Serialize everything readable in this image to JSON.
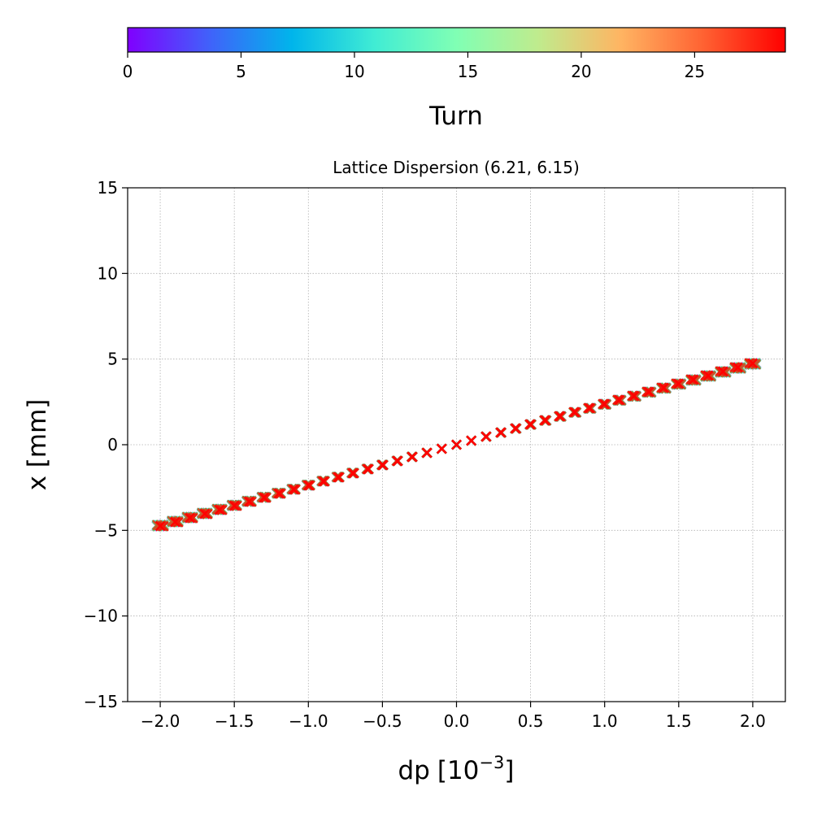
{
  "chart_data": {
    "type": "scatter",
    "title": "Lattice Dispersion (6.21, 6.15)",
    "xlabel": "dp",
    "xlabel_unit_base": "[10",
    "xlabel_unit_exp": "−3",
    "xlabel_unit_close": "]",
    "ylabel": "x [mm]",
    "xlim": [
      -2.22,
      2.22
    ],
    "ylim": [
      -15,
      15
    ],
    "xticks": [
      -2.0,
      -1.5,
      -1.0,
      -0.5,
      0.0,
      0.5,
      1.0,
      1.5,
      2.0
    ],
    "xtick_labels": [
      "−2.0",
      "−1.5",
      "−1.0",
      "−0.5",
      "0.0",
      "0.5",
      "1.0",
      "1.5",
      "2.0"
    ],
    "yticks": [
      -15,
      -10,
      -5,
      0,
      5,
      10,
      15
    ],
    "ytick_labels": [
      "−15",
      "−10",
      "−5",
      "0",
      "5",
      "10",
      "15"
    ],
    "grid": true,
    "marker": "x",
    "dispersion_mm_per_1e-3": 2.36,
    "dp_points": [
      -2.0,
      -1.9,
      -1.8,
      -1.7,
      -1.6,
      -1.5,
      -1.4,
      -1.3,
      -1.2,
      -1.1,
      -1.0,
      -0.9,
      -0.8,
      -0.7,
      -0.6,
      -0.5,
      -0.4,
      -0.3,
      -0.2,
      -0.1,
      0.0,
      0.1,
      0.2,
      0.3,
      0.4,
      0.5,
      0.6,
      0.7,
      0.8,
      0.9,
      1.0,
      1.1,
      1.2,
      1.3,
      1.4,
      1.5,
      1.6,
      1.7,
      1.8,
      1.9,
      2.0
    ],
    "turn_range": [
      0,
      29
    ],
    "colorbar": {
      "label": "Turn",
      "ticks": [
        0,
        5,
        10,
        15,
        20,
        25
      ],
      "range": [
        0,
        29
      ],
      "colormap": "rainbow"
    }
  }
}
